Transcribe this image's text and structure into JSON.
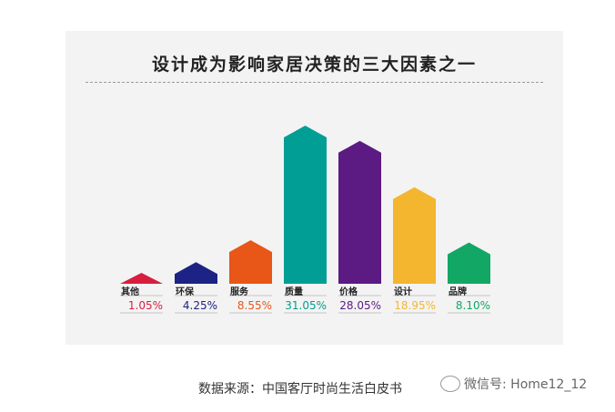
{
  "chart_data": {
    "type": "bar",
    "title": "设计成为影响家居决策的三大因素之一",
    "categories": [
      "其他",
      "环保",
      "服务",
      "质量",
      "价格",
      "设计",
      "品牌"
    ],
    "values": [
      1.05,
      4.25,
      8.55,
      31.05,
      28.05,
      18.95,
      8.1
    ],
    "value_labels": [
      "1.05%",
      "4.25%",
      "8.55%",
      "31.05%",
      "28.05%",
      "18.95%",
      "8.10%"
    ],
    "colors": [
      "#d81e3f",
      "#1c2384",
      "#e85618",
      "#009e94",
      "#5c1a83",
      "#f4b62e",
      "#12a765"
    ],
    "unit": "%",
    "xlabel": "",
    "ylabel": "",
    "grid": false,
    "legend": "none"
  },
  "footer": {
    "source": "数据来源：中国客厅时尚生活白皮书",
    "watermark": "微信号: Home12_12"
  }
}
